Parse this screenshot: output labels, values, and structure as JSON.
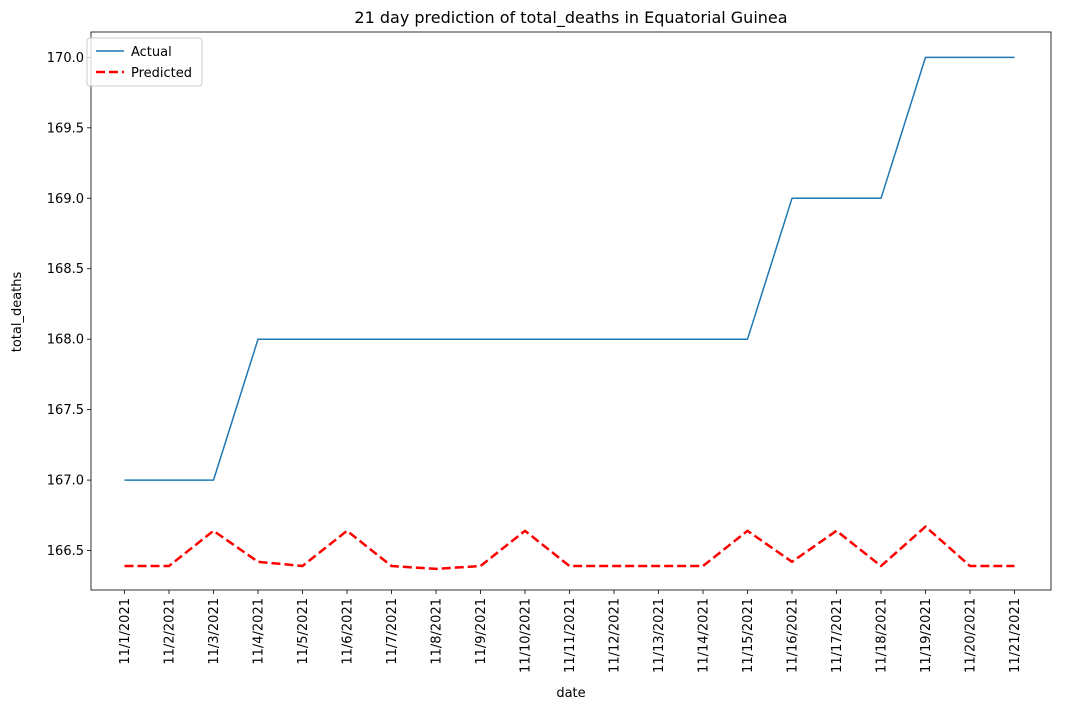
{
  "chart_data": {
    "type": "line",
    "title": "21 day prediction of total_deaths in Equatorial Guinea",
    "xlabel": "date",
    "ylabel": "total_deaths",
    "categories": [
      "11/1/2021",
      "11/2/2021",
      "11/3/2021",
      "11/4/2021",
      "11/5/2021",
      "11/6/2021",
      "11/7/2021",
      "11/8/2021",
      "11/9/2021",
      "11/10/2021",
      "11/11/2021",
      "11/12/2021",
      "11/13/2021",
      "11/14/2021",
      "11/15/2021",
      "11/16/2021",
      "11/17/2021",
      "11/18/2021",
      "11/19/2021",
      "11/20/2021",
      "11/21/2021"
    ],
    "series": [
      {
        "name": "Actual",
        "color": "#1f77b4",
        "style": "solid",
        "values": [
          167,
          167,
          167,
          168,
          168,
          168,
          168,
          168,
          168,
          168,
          168,
          168,
          168,
          168,
          168,
          169,
          169,
          169,
          170,
          170,
          170
        ]
      },
      {
        "name": "Predicted",
        "color": "#ff0000",
        "style": "dashed",
        "values": [
          166.39,
          166.39,
          166.64,
          166.42,
          166.39,
          166.64,
          166.39,
          166.37,
          166.39,
          166.64,
          166.39,
          166.39,
          166.39,
          166.39,
          166.64,
          166.42,
          166.64,
          166.39,
          166.67,
          166.39,
          166.39
        ]
      }
    ],
    "ylim": [
      166.22,
      170.18
    ],
    "yticks": [
      "166.5",
      "167.0",
      "167.5",
      "168.0",
      "168.5",
      "169.0",
      "169.5",
      "170.0"
    ],
    "grid": false,
    "legend": "top-left"
  }
}
